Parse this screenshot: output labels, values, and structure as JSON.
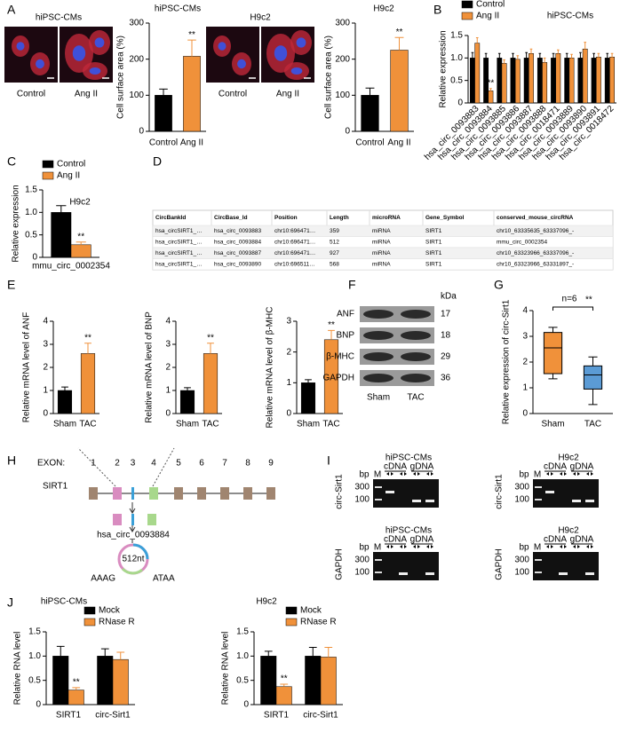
{
  "panel_labels": [
    "A",
    "B",
    "C",
    "D",
    "E",
    "F",
    "G",
    "H",
    "I",
    "J"
  ],
  "micrographs": [
    {
      "title": "hiPSC-CMs",
      "labels": [
        "Control",
        "Ang II"
      ]
    },
    {
      "title": "H9c2",
      "labels": [
        "Control",
        "Ang II"
      ]
    }
  ],
  "chart_data": [
    {
      "type": "bar",
      "title": "hiPSC-CMs",
      "ylabel": "Cell surface area (%)",
      "categories": [
        "Control",
        "Ang II"
      ],
      "values": [
        100,
        208
      ],
      "errors": [
        17,
        45
      ],
      "colors": [
        "#000000",
        "#f0913a"
      ],
      "ylim": [
        0,
        300
      ],
      "yticks": [
        0,
        100,
        200,
        300
      ],
      "annotations": [
        {
          "text": "**",
          "category": 1
        }
      ]
    },
    {
      "type": "bar",
      "title": "H9c2",
      "ylabel": "Cell surface area (%)",
      "categories": [
        "Control",
        "Ang II"
      ],
      "values": [
        100,
        225
      ],
      "errors": [
        20,
        35
      ],
      "colors": [
        "#000000",
        "#f0913a"
      ],
      "ylim": [
        0,
        300
      ],
      "yticks": [
        0,
        100,
        200,
        300
      ],
      "annotations": [
        {
          "text": "**",
          "category": 1
        }
      ]
    },
    {
      "type": "bar",
      "title": "hiPSC-CMs",
      "ylabel": "Relative expression",
      "categories": [
        "hsa_circ_0093883",
        "hsa_circ_0093884",
        "hsa_circ_0093885",
        "hsa_circ_0093886",
        "hsa_circ_0093887",
        "hsa_circ_0093888",
        "hsa_circ_0018471",
        "hsa_circ_0093889",
        "hsa_circ_0093890",
        "hsa_circ_0093891",
        "hsa_circ_0018472"
      ],
      "series": [
        {
          "name": "Control",
          "color": "#000000",
          "values": [
            1,
            1,
            1,
            1,
            1,
            1,
            1,
            1,
            1,
            1,
            1
          ],
          "errors": [
            0.12,
            0.1,
            0.1,
            0.1,
            0.12,
            0.1,
            0.1,
            0.1,
            0.12,
            0.1,
            0.1
          ]
        },
        {
          "name": "Ang II",
          "color": "#f0913a",
          "values": [
            1.33,
            0.27,
            0.88,
            0.97,
            1.1,
            0.9,
            1.1,
            1.0,
            1.2,
            1.02,
            1.02
          ],
          "errors": [
            0.12,
            0.05,
            0.08,
            0.08,
            0.1,
            0.1,
            0.08,
            0.08,
            0.15,
            0.08,
            0.08
          ]
        }
      ],
      "ylim": [
        0,
        1.5
      ],
      "yticks": [
        0,
        0.5,
        {
          "value": 1,
          "label": "1.0"
        },
        {
          "value": 1.5,
          "label": "1.5"
        }
      ],
      "xtick_rotation": 45,
      "highlight": {
        "category": 1,
        "color": "#e8413c"
      },
      "annotations": [
        {
          "text": "**",
          "category": 1,
          "series": 1
        }
      ]
    },
    {
      "type": "bar",
      "title": "H9c2",
      "ylabel": "Relative expression",
      "categories": [
        "mmu_circ_0002354"
      ],
      "series": [
        {
          "name": "Control",
          "color": "#000000",
          "values": [
            1.0
          ],
          "errors": [
            0.15
          ]
        },
        {
          "name": "Ang II",
          "color": "#f0913a",
          "values": [
            0.28
          ],
          "errors": [
            0.06
          ]
        }
      ],
      "ylim": [
        0,
        1.5
      ],
      "yticks": [
        0,
        0.5,
        {
          "value": 1,
          "label": "1.0"
        },
        {
          "value": 1.5,
          "label": "1.5"
        }
      ],
      "annotations": [
        {
          "text": "**",
          "category": 0,
          "series": 1
        }
      ]
    },
    {
      "type": "bar",
      "ylabel": "Relative mRNA level of ANF",
      "categories": [
        "Sham",
        "TAC"
      ],
      "values": [
        1.0,
        2.6
      ],
      "errors": [
        0.15,
        0.45
      ],
      "colors": [
        "#000000",
        "#f0913a"
      ],
      "ylim": [
        0,
        4
      ],
      "yticks": [
        0,
        1,
        2,
        3,
        4
      ],
      "annotations": [
        {
          "text": "**",
          "category": 1
        }
      ]
    },
    {
      "type": "bar",
      "ylabel": "Relative mRNA level of BNP",
      "categories": [
        "Sham",
        "TAC"
      ],
      "values": [
        1.0,
        2.6
      ],
      "errors": [
        0.12,
        0.45
      ],
      "colors": [
        "#000000",
        "#f0913a"
      ],
      "ylim": [
        0,
        4
      ],
      "yticks": [
        0,
        1,
        2,
        3,
        4
      ],
      "annotations": [
        {
          "text": "**",
          "category": 1
        }
      ]
    },
    {
      "type": "bar",
      "ylabel": "Relative mRNA level of β-MHC",
      "categories": [
        "Sham",
        "TAC"
      ],
      "values": [
        1.0,
        2.4
      ],
      "errors": [
        0.1,
        0.3
      ],
      "colors": [
        "#000000",
        "#f0913a"
      ],
      "ylim": [
        0,
        3
      ],
      "yticks": [
        0,
        1,
        2,
        3
      ],
      "annotations": [
        {
          "text": "**",
          "category": 1
        }
      ]
    },
    {
      "type": "box",
      "ylabel": "Relative expression of circ-Sirt1",
      "categories": [
        "Sham",
        "TAC"
      ],
      "boxes": [
        {
          "min": 1.35,
          "q1": 1.55,
          "median": 2.55,
          "q3": 3.15,
          "max": 3.35
        },
        {
          "min": 0.35,
          "q1": 0.95,
          "median": 1.5,
          "q3": 1.85,
          "max": 2.2
        }
      ],
      "colors": [
        "#f0913a",
        "#5b9bd5"
      ],
      "ylim": [
        0,
        4
      ],
      "yticks": [
        0,
        1,
        2,
        3,
        4
      ],
      "annotations": [
        "n=6",
        "**"
      ]
    },
    {
      "type": "bar",
      "title": "hiPSC-CMs",
      "ylabel": "Relative RNA level",
      "categories": [
        "SIRT1",
        "circ-Sirt1"
      ],
      "series": [
        {
          "name": "Mock",
          "color": "#000000",
          "values": [
            1.0,
            1.0
          ],
          "errors": [
            0.2,
            0.15
          ]
        },
        {
          "name": "RNase R",
          "color": "#f0913a",
          "values": [
            0.3,
            0.93
          ],
          "errors": [
            0.05,
            0.15
          ]
        }
      ],
      "ylim": [
        0,
        1.5
      ],
      "yticks": [
        0,
        0.5,
        {
          "value": 1,
          "label": "1.0"
        },
        {
          "value": 1.5,
          "label": "1.5"
        }
      ],
      "annotations": [
        {
          "text": "**",
          "category": 0,
          "series": 1
        }
      ]
    },
    {
      "type": "bar",
      "title": "H9c2",
      "ylabel": "Relative RNA level",
      "categories": [
        "SIRT1",
        "circ-Sirt1"
      ],
      "series": [
        {
          "name": "Mock",
          "color": "#000000",
          "values": [
            1.0,
            1.0
          ],
          "errors": [
            0.1,
            0.18
          ]
        },
        {
          "name": "RNase R",
          "color": "#f0913a",
          "values": [
            0.37,
            0.98
          ],
          "errors": [
            0.05,
            0.2
          ]
        }
      ],
      "ylim": [
        0,
        1.5
      ],
      "yticks": [
        0,
        0.5,
        {
          "value": 1,
          "label": "1.0"
        },
        {
          "value": 1.5,
          "label": "1.5"
        }
      ],
      "annotations": [
        {
          "text": "**",
          "category": 0,
          "series": 1
        }
      ]
    }
  ],
  "table": {
    "columns": [
      "CircBankId",
      "CircBase_Id",
      "Position",
      "Length",
      "microRNA",
      "Gene_Symbol",
      "conserved_mouse_circRNA"
    ],
    "rows": [
      [
        "hsa_circSIRT1_…",
        "hsa_circ_0093883",
        "chr10:696471…",
        359,
        "miRNA",
        "SIRT1",
        "chr10_63335635_63337096_-"
      ],
      [
        "hsa_circSIRT1_…",
        "hsa_circ_0093884",
        "chr10:696471…",
        512,
        "miRNA",
        "SIRT1",
        "mmu_circ_0002354"
      ],
      [
        "hsa_circSIRT1_…",
        "hsa_circ_0093887",
        "chr10:696471…",
        927,
        "miRNA",
        "SIRT1",
        "chr10_63323966_63337096_-"
      ],
      [
        "hsa_circSIRT1_…",
        "hsa_circ_0093890",
        "chr10:696511…",
        568,
        "miRNA",
        "SIRT1",
        "chr10_63323966_63331897_-"
      ]
    ]
  },
  "blot": {
    "unit": "kDa",
    "rows": [
      {
        "name": "ANF",
        "kda": 17
      },
      {
        "name": "BNP",
        "kda": 18
      },
      {
        "name": "β-MHC",
        "kda": 29
      },
      {
        "name": "GAPDH",
        "kda": 36
      }
    ],
    "lanes": [
      "Sham",
      "TAC"
    ]
  },
  "diagram": {
    "exon_label": "EXON:",
    "exons": [
      1,
      2,
      3,
      4,
      5,
      6,
      7,
      8,
      9
    ],
    "gene": "SIRT1",
    "circ": "hsa_circ_0093884",
    "size": "512nt",
    "left_seq": "AAAG",
    "right_seq": "ATAA"
  },
  "gels": [
    {
      "title": "hiPSC-CMs",
      "target": "circ-Sirt1",
      "groups": [
        "cDNA",
        "gDNA"
      ],
      "unit": "bp",
      "ladder": [
        300,
        100
      ],
      "marker": "M"
    },
    {
      "title": "H9c2",
      "target": "circ-Sirt1",
      "groups": [
        "cDNA",
        "gDNA"
      ],
      "unit": "bp",
      "ladder": [
        300,
        100
      ],
      "marker": "M"
    },
    {
      "title": "hiPSC-CMs",
      "target": "GAPDH",
      "groups": [
        "cDNA",
        "gDNA"
      ],
      "unit": "bp",
      "ladder": [
        300,
        100
      ],
      "marker": "M"
    },
    {
      "title": "H9c2",
      "target": "GAPDH",
      "groups": [
        "cDNA",
        "gDNA"
      ],
      "unit": "bp",
      "ladder": [
        300,
        100
      ],
      "marker": "M"
    }
  ]
}
